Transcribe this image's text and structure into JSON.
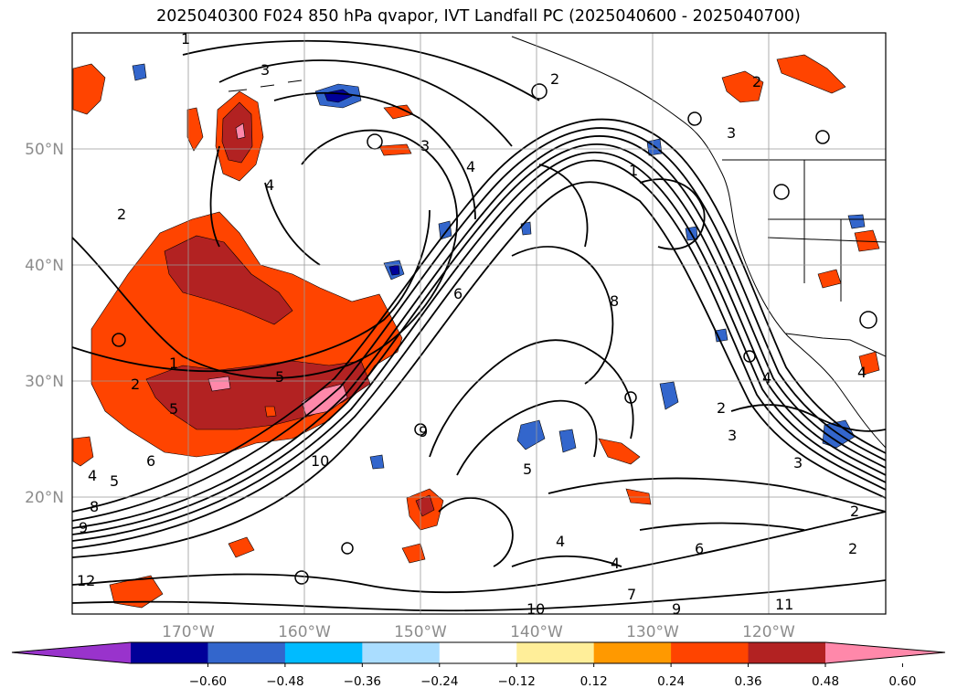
{
  "title": "2025040300 F024 850 hPa qvapor, IVT Landfall PC (2025040600 - 2025040700)",
  "map": {
    "lat_labels": [
      "50°N",
      "40°N",
      "30°N",
      "20°N"
    ],
    "lon_labels": [
      "170°W",
      "160°W",
      "150°W",
      "140°W",
      "130°W",
      "120°W"
    ],
    "gridlines": true,
    "coastlines": true,
    "contour_labels": [
      "1",
      "2",
      "3",
      "4",
      "5",
      "6",
      "7",
      "8",
      "9",
      "10",
      "11",
      "12"
    ]
  },
  "colorbar": {
    "ticks": [
      "−0.60",
      "−0.48",
      "−0.36",
      "−0.24",
      "−0.12",
      "0.12",
      "0.24",
      "0.36",
      "0.48",
      "0.60"
    ],
    "colors": [
      "#9933cc",
      "#000099",
      "#3366cc",
      "#00bbff",
      "#aaddff",
      "#ffffff",
      "#ffee99",
      "#ff9900",
      "#ff4400",
      "#b22222",
      "#ff88aa"
    ],
    "extend": "both"
  }
}
